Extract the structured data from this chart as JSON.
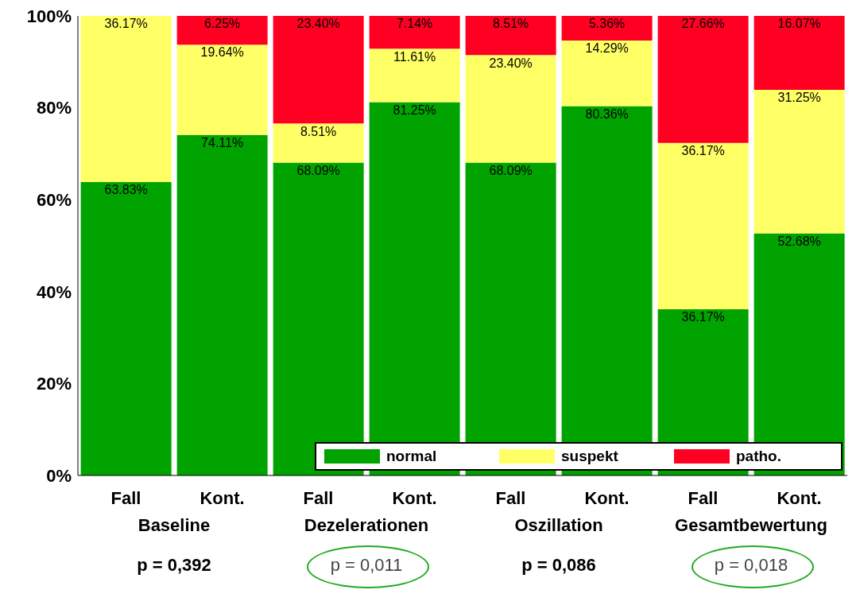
{
  "chart_data": {
    "type": "bar",
    "stacked": true,
    "categories": [
      "Fall",
      "Kont.",
      "Fall",
      "Kont.",
      "Fall",
      "Kont.",
      "Fall",
      "Kont."
    ],
    "series": [
      {
        "name": "normal",
        "color": "#00a300",
        "values": [
          63.83,
          74.11,
          68.09,
          81.25,
          68.09,
          80.36,
          36.17,
          52.68
        ],
        "value_labels": [
          "63.83%",
          "74.11%",
          "68.09%",
          "81.25%",
          "68.09%",
          "80.36%",
          "36.17%",
          "52.68%"
        ]
      },
      {
        "name": "suspekt",
        "color": "#ffff66",
        "values": [
          36.17,
          19.64,
          8.51,
          11.61,
          23.4,
          14.29,
          36.17,
          31.25
        ],
        "value_labels": [
          "36.17%",
          "19.64%",
          "8.51%",
          "11.61%",
          "23.40%",
          "14.29%",
          "36.17%",
          "31.25%"
        ]
      },
      {
        "name": "patho.",
        "color": "#ff0022",
        "values": [
          0,
          6.25,
          23.4,
          7.14,
          8.51,
          5.36,
          27.66,
          16.07
        ],
        "value_labels": [
          null,
          "6.25%",
          "23.40%",
          "7.14%",
          "8.51%",
          "5.36%",
          "27.66%",
          "16.07%"
        ]
      }
    ],
    "ylim": [
      0,
      100
    ],
    "yticks": [
      {
        "value": 0,
        "label": "0%"
      },
      {
        "value": 20,
        "label": "20%"
      },
      {
        "value": 40,
        "label": "40%"
      },
      {
        "value": 60,
        "label": "60%"
      },
      {
        "value": 80,
        "label": "80%"
      },
      {
        "value": 100,
        "label": "100%"
      }
    ],
    "grid": false,
    "legend": "bottom right",
    "annotations": [
      "Baseline",
      "Dezelerationen",
      "Oszillation",
      "Gesamtbewertung",
      "p = 0,392",
      "p = 0,011",
      "p = 0,086",
      "p = 0,018"
    ]
  }
}
